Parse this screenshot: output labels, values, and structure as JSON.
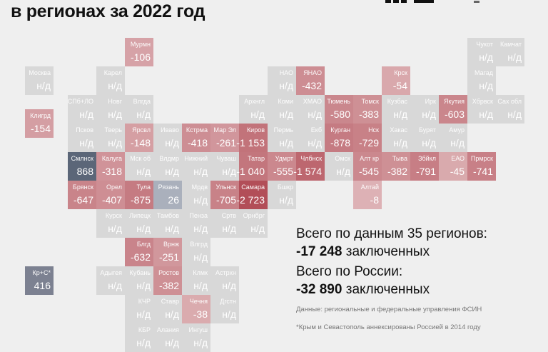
{
  "title": "в регионах за 2022 год",
  "colors": {
    "background": "#efefef",
    "no_data": "#d8d8d8",
    "decrease_light": "#dfb7ba",
    "decrease_dark": "#b24e58",
    "increase": "#5b6678",
    "increase_mid": "#7c8191",
    "increase_light": "#aab0bc"
  },
  "no_data_label": "н/д",
  "tiles": [
    {
      "name": "Мурмн",
      "value": -106,
      "col": 2,
      "row": 0
    },
    {
      "name": "Чукот",
      "value": null,
      "col": 14,
      "row": 0
    },
    {
      "name": "Камчат",
      "value": null,
      "col": 15,
      "row": 0
    },
    {
      "name": "Москва",
      "value": null,
      "col": -1.5,
      "row": 1
    },
    {
      "name": "Карел",
      "value": null,
      "col": 1,
      "row": 1
    },
    {
      "name": "НАО",
      "value": null,
      "col": 7,
      "row": 1
    },
    {
      "name": "ЯНАО",
      "value": -432,
      "col": 8,
      "row": 1
    },
    {
      "name": "Крск",
      "value": -54,
      "col": 11,
      "row": 1
    },
    {
      "name": "Магад",
      "value": null,
      "col": 14,
      "row": 1
    },
    {
      "name": "СПб+ЛО",
      "value": null,
      "col": 0,
      "row": 2
    },
    {
      "name": "Новг",
      "value": null,
      "col": 1,
      "row": 2
    },
    {
      "name": "Влгда",
      "value": null,
      "col": 2,
      "row": 2
    },
    {
      "name": "Архнгл",
      "value": null,
      "col": 6,
      "row": 2
    },
    {
      "name": "Коми",
      "value": null,
      "col": 7,
      "row": 2
    },
    {
      "name": "ХМАО",
      "value": null,
      "col": 8,
      "row": 2
    },
    {
      "name": "Тюмень",
      "value": -580,
      "col": 9,
      "row": 2
    },
    {
      "name": "Томск",
      "value": -383,
      "col": 10,
      "row": 2
    },
    {
      "name": "Кузбас",
      "value": null,
      "col": 11,
      "row": 2
    },
    {
      "name": "Ирк",
      "value": null,
      "col": 12,
      "row": 2
    },
    {
      "name": "Якутия",
      "value": -603,
      "col": 13,
      "row": 2
    },
    {
      "name": "Хбрвск",
      "value": null,
      "col": 14,
      "row": 2
    },
    {
      "name": "Сах обл",
      "value": null,
      "col": 15,
      "row": 2
    },
    {
      "name": "Клигрд",
      "value": -154,
      "col": -1.5,
      "row": 2.5
    },
    {
      "name": "Псков",
      "value": null,
      "col": 0,
      "row": 3
    },
    {
      "name": "Тверь",
      "value": null,
      "col": 1,
      "row": 3
    },
    {
      "name": "Ярсвл",
      "value": -148,
      "col": 2,
      "row": 3
    },
    {
      "name": "Иваво",
      "value": null,
      "col": 3,
      "row": 3
    },
    {
      "name": "Кстрма",
      "value": -418,
      "col": 4,
      "row": 3
    },
    {
      "name": "Мар Эл",
      "value": -261,
      "col": 5,
      "row": 3
    },
    {
      "name": "Киров",
      "value": -1153,
      "col": 6,
      "row": 3
    },
    {
      "name": "Пермь",
      "value": null,
      "col": 7,
      "row": 3
    },
    {
      "name": "Екб",
      "value": null,
      "col": 8,
      "row": 3
    },
    {
      "name": "Курган",
      "value": -878,
      "col": 9,
      "row": 3
    },
    {
      "name": "Нск",
      "value": -729,
      "col": 10,
      "row": 3
    },
    {
      "name": "Хакас",
      "value": null,
      "col": 11,
      "row": 3
    },
    {
      "name": "Бурят",
      "value": null,
      "col": 12,
      "row": 3
    },
    {
      "name": "Амур",
      "value": null,
      "col": 13,
      "row": 3
    },
    {
      "name": "Смлнск",
      "value": 868,
      "col": 0,
      "row": 4
    },
    {
      "name": "Калуга",
      "value": -318,
      "col": 1,
      "row": 4
    },
    {
      "name": "Мск об",
      "value": null,
      "col": 2,
      "row": 4
    },
    {
      "name": "Влдмр",
      "value": null,
      "col": 3,
      "row": 4
    },
    {
      "name": "Нижний",
      "value": null,
      "col": 4,
      "row": 4
    },
    {
      "name": "Чуваш",
      "value": null,
      "col": 5,
      "row": 4
    },
    {
      "name": "Татар",
      "value": -1040,
      "col": 6,
      "row": 4
    },
    {
      "name": "Удмрт",
      "value": -555,
      "col": 7,
      "row": 4
    },
    {
      "name": "Члбнск",
      "value": -1574,
      "col": 8,
      "row": 4
    },
    {
      "name": "Омск",
      "value": null,
      "col": 9,
      "row": 4
    },
    {
      "name": "Алт кр",
      "value": -545,
      "col": 10,
      "row": 4
    },
    {
      "name": "Тыва",
      "value": -382,
      "col": 11,
      "row": 4
    },
    {
      "name": "Збйкл",
      "value": -791,
      "col": 12,
      "row": 4
    },
    {
      "name": "ЕАО",
      "value": -45,
      "col": 13,
      "row": 4
    },
    {
      "name": "Прмрск",
      "value": -741,
      "col": 14,
      "row": 4
    },
    {
      "name": "Брянск",
      "value": -647,
      "col": 0,
      "row": 5
    },
    {
      "name": "Орел",
      "value": -407,
      "col": 1,
      "row": 5
    },
    {
      "name": "Тула",
      "value": -875,
      "col": 2,
      "row": 5
    },
    {
      "name": "Рязань",
      "value": 26,
      "col": 3,
      "row": 5
    },
    {
      "name": "Мрдв",
      "value": null,
      "col": 4,
      "row": 5
    },
    {
      "name": "Ульнск",
      "value": -705,
      "col": 5,
      "row": 5
    },
    {
      "name": "Самара",
      "value": -2723,
      "col": 6,
      "row": 5
    },
    {
      "name": "Бшкр",
      "value": null,
      "col": 7,
      "row": 5
    },
    {
      "name": "Алтай",
      "value": -8,
      "col": 10,
      "row": 5
    },
    {
      "name": "Курск",
      "value": null,
      "col": 1,
      "row": 6
    },
    {
      "name": "Липецк",
      "value": null,
      "col": 2,
      "row": 6
    },
    {
      "name": "Тамбов",
      "value": null,
      "col": 3,
      "row": 6
    },
    {
      "name": "Пенза",
      "value": null,
      "col": 4,
      "row": 6
    },
    {
      "name": "Сртв",
      "value": null,
      "col": 5,
      "row": 6
    },
    {
      "name": "Орнбрг",
      "value": null,
      "col": 6,
      "row": 6
    },
    {
      "name": "Блгд",
      "value": -632,
      "col": 2,
      "row": 7
    },
    {
      "name": "Врнж",
      "value": -251,
      "col": 3,
      "row": 7
    },
    {
      "name": "Влгрд",
      "value": null,
      "col": 4,
      "row": 7
    },
    {
      "name": "Кр+С*",
      "value": 416,
      "col": -1.5,
      "row": 8
    },
    {
      "name": "Адыгея",
      "value": null,
      "col": 1,
      "row": 8
    },
    {
      "name": "Кубань",
      "value": null,
      "col": 2,
      "row": 8
    },
    {
      "name": "Ростов",
      "value": -382,
      "col": 3,
      "row": 8
    },
    {
      "name": "Клмк",
      "value": null,
      "col": 4,
      "row": 8
    },
    {
      "name": "Астрхн",
      "value": null,
      "col": 5,
      "row": 8
    },
    {
      "name": "КЧР",
      "value": null,
      "col": 2,
      "row": 9
    },
    {
      "name": "Ставр",
      "value": null,
      "col": 3,
      "row": 9
    },
    {
      "name": "Чечня",
      "value": -38,
      "col": 4,
      "row": 9
    },
    {
      "name": "Дгстн",
      "value": null,
      "col": 5,
      "row": 9
    },
    {
      "name": "КБР",
      "value": null,
      "col": 2,
      "row": 10
    },
    {
      "name": "Алания",
      "value": null,
      "col": 3,
      "row": 10
    },
    {
      "name": "Ингуш",
      "value": null,
      "col": 4,
      "row": 10
    }
  ],
  "summary": {
    "regions_heading": "Всего по данным 35 регионов:",
    "regions_total": "-17 248",
    "unit": "заключенных",
    "russia_heading": "Всего по России:",
    "russia_total": "-32 890",
    "source": "Данные: региональные и федеральные управления ФСИН",
    "footnote": "*Крым и Севастополь аннексированы Россией в 2014 году"
  }
}
